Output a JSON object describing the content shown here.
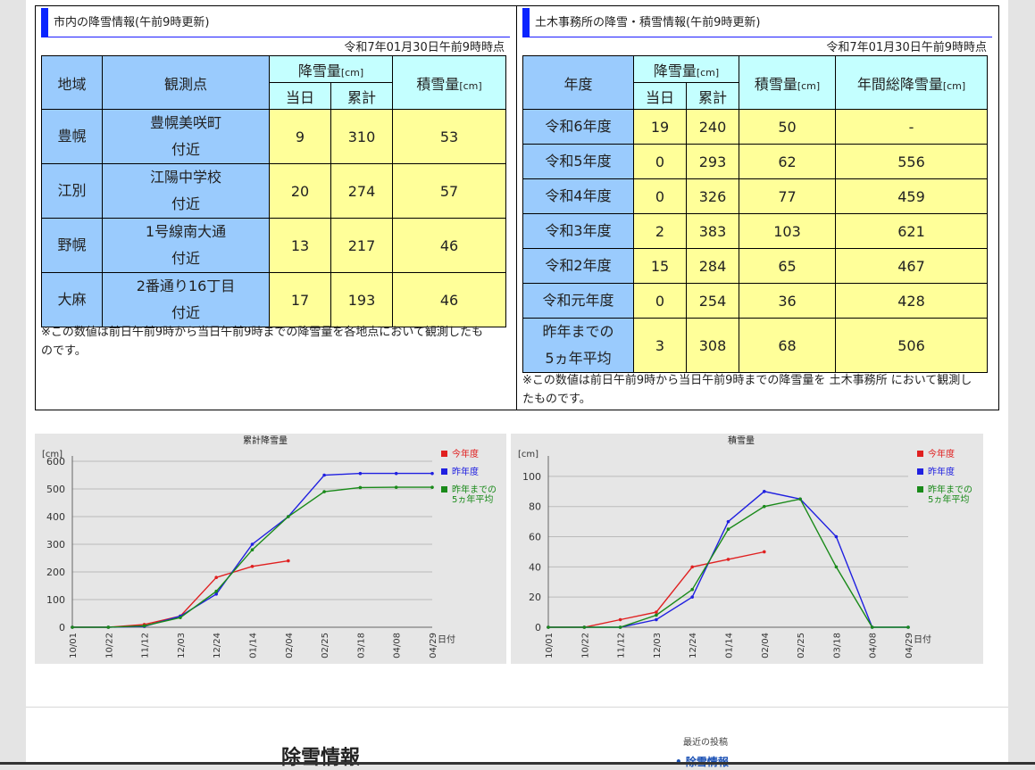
{
  "city": {
    "title": "市内の降雪情報(午前9時更新)",
    "asof": "令和7年01月30日午前9時時点",
    "headers": {
      "area": "地域",
      "point": "観測点",
      "snowfall": "降雪量",
      "unit": "[cm]",
      "today": "当日",
      "cumulative": "累計",
      "depth": "積雪量"
    },
    "rows": [
      {
        "area": "豊幌",
        "line1": "豊幌美咲町",
        "line2": "付近",
        "today": "9",
        "cumulative": "310",
        "depth": "53"
      },
      {
        "area": "江別",
        "line1": "江陽中学校",
        "line2": "付近",
        "today": "20",
        "cumulative": "274",
        "depth": "57"
      },
      {
        "area": "野幌",
        "line1": "1号線南大通",
        "line2": "付近",
        "today": "13",
        "cumulative": "217",
        "depth": "46"
      },
      {
        "area": "大麻",
        "line1": "2番通り16丁目",
        "line2": "付近",
        "today": "17",
        "cumulative": "193",
        "depth": "46"
      }
    ],
    "note1": "※この数値は前日午前9時から当日午前9時までの降雪量を各地点において観測したも",
    "note2": "のです。"
  },
  "office": {
    "title": "土木事務所の降雪・積雪情報(午前9時更新)",
    "asof": "令和7年01月30日午前9時時点",
    "headers": {
      "year": "年度",
      "snowfall": "降雪量",
      "unit": "[cm]",
      "today": "当日",
      "cumulative": "累計",
      "depth": "積雪量",
      "annual": "年間総降雪量"
    },
    "rows": [
      {
        "year": "令和6年度",
        "today": "19",
        "cumulative": "240",
        "depth": "50",
        "annual": "-"
      },
      {
        "year": "令和5年度",
        "today": "0",
        "cumulative": "293",
        "depth": "62",
        "annual": "556"
      },
      {
        "year": "令和4年度",
        "today": "0",
        "cumulative": "326",
        "depth": "77",
        "annual": "459"
      },
      {
        "year": "令和3年度",
        "today": "2",
        "cumulative": "383",
        "depth": "103",
        "annual": "621"
      },
      {
        "year": "令和2年度",
        "today": "15",
        "cumulative": "284",
        "depth": "65",
        "annual": "467"
      },
      {
        "year": "令和元年度",
        "today": "0",
        "cumulative": "254",
        "depth": "36",
        "annual": "428"
      }
    ],
    "avg": {
      "line1": "昨年までの",
      "line2": "5ヵ年平均",
      "today": "3",
      "cumulative": "308",
      "depth": "68",
      "annual": "506"
    },
    "note1": "※この数値は前日午前9時から当日午前9時までの降雪量を 土木事務所 において観測し",
    "note2": "たものです。"
  },
  "chart_data": [
    {
      "type": "line",
      "title": "累計降雪量",
      "ylabel": "[cm]",
      "xlabel": "日付",
      "ylim": [
        0,
        600
      ],
      "yticks": [
        0,
        100,
        200,
        300,
        400,
        500,
        600
      ],
      "grid": true,
      "legend_position": "right",
      "categories": [
        "10/01",
        "10/22",
        "11/12",
        "12/03",
        "12/24",
        "01/14",
        "02/04",
        "02/25",
        "03/18",
        "04/08",
        "04/29"
      ],
      "series": [
        {
          "name": "今年度",
          "color": "#e02020",
          "values": [
            0,
            0,
            10,
            40,
            180,
            220,
            240,
            null,
            null,
            null,
            null
          ]
        },
        {
          "name": "昨年度",
          "color": "#2020e0",
          "values": [
            0,
            0,
            3,
            40,
            120,
            300,
            400,
            550,
            556,
            556,
            556
          ]
        },
        {
          "name": "昨年までの5ヵ年平均",
          "color": "#1a8a1a",
          "values": [
            0,
            0,
            5,
            35,
            130,
            280,
            400,
            490,
            505,
            506,
            506
          ]
        }
      ]
    },
    {
      "type": "line",
      "title": "積雪量",
      "ylabel": "[cm]",
      "xlabel": "日付",
      "ylim": [
        0,
        110
      ],
      "yticks": [
        0,
        20,
        40,
        60,
        80,
        100
      ],
      "grid": true,
      "legend_position": "right",
      "categories": [
        "10/01",
        "10/22",
        "11/12",
        "12/03",
        "12/24",
        "01/14",
        "02/04",
        "02/25",
        "03/18",
        "04/08",
        "04/29"
      ],
      "series": [
        {
          "name": "今年度",
          "color": "#e02020",
          "values": [
            0,
            0,
            5,
            10,
            40,
            45,
            50,
            null,
            null,
            null,
            null
          ]
        },
        {
          "name": "昨年度",
          "color": "#2020e0",
          "values": [
            0,
            0,
            0,
            5,
            20,
            70,
            90,
            85,
            60,
            0,
            0
          ]
        },
        {
          "name": "昨年までの5ヵ年平均",
          "color": "#1a8a1a",
          "values": [
            0,
            0,
            0,
            8,
            25,
            65,
            80,
            85,
            40,
            0,
            0
          ]
        }
      ]
    }
  ],
  "legend": {
    "current": "今年度",
    "last": "昨年度",
    "avg1": "昨年までの",
    "avg2": "5ヵ年平均"
  },
  "footer": {
    "title": "除雪情報",
    "recent_label": "最近の投稿",
    "recent_link": "• 除雪情報"
  }
}
